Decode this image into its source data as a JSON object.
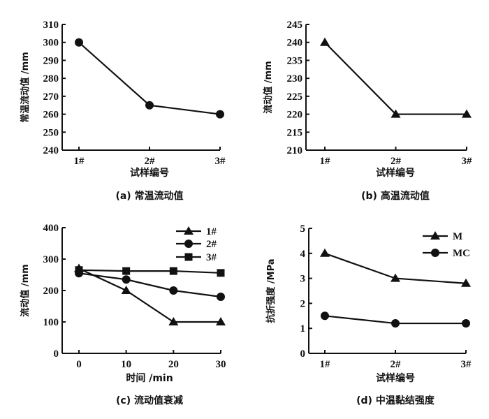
{
  "chart_data": [
    {
      "type": "line",
      "caption": "(a) 常温流动值",
      "xlabel": "试样编号",
      "ylabel": "常温流动值 /mm",
      "categories": [
        "1#",
        "2#",
        "3#"
      ],
      "ylim": [
        240,
        310
      ],
      "yticks": [
        240,
        250,
        260,
        270,
        280,
        290,
        300,
        310
      ],
      "grid": false,
      "series": [
        {
          "marker": "circle",
          "values": [
            300,
            265,
            260
          ]
        }
      ]
    },
    {
      "type": "line",
      "caption": "(b) 高温流动值",
      "xlabel": "试样编号",
      "ylabel": "流动值 /mm",
      "categories": [
        "1#",
        "2#",
        "3#"
      ],
      "ylim": [
        210,
        245
      ],
      "yticks": [
        210,
        215,
        220,
        225,
        230,
        235,
        240,
        245
      ],
      "grid": false,
      "series": [
        {
          "marker": "triangle",
          "values": [
            240,
            220,
            220
          ]
        }
      ]
    },
    {
      "type": "line",
      "caption": "(c) 流动值衰减",
      "xlabel": "时间 /min",
      "ylabel": "流动值 /mm",
      "categories": [
        "0",
        "10",
        "20",
        "30"
      ],
      "ylim": [
        0,
        400
      ],
      "yticks": [
        0,
        100,
        200,
        300,
        400
      ],
      "grid": false,
      "legend": "top-right",
      "series": [
        {
          "name": "1#",
          "marker": "triangle",
          "values": [
            270,
            200,
            100,
            100
          ]
        },
        {
          "name": "2#",
          "marker": "circle",
          "values": [
            255,
            235,
            200,
            180
          ]
        },
        {
          "name": "3#",
          "marker": "square",
          "values": [
            265,
            262,
            262,
            256
          ]
        }
      ]
    },
    {
      "type": "line",
      "caption": "(d) 中温黏结强度",
      "xlabel": "试样编号",
      "ylabel": "抗折强度 /MPa",
      "categories": [
        "1#",
        "2#",
        "3#"
      ],
      "ylim": [
        0,
        5
      ],
      "yticks": [
        0,
        1,
        2,
        3,
        4,
        5
      ],
      "grid": false,
      "legend": "top-right",
      "series": [
        {
          "name": "M",
          "marker": "triangle",
          "values": [
            4.0,
            3.0,
            2.8
          ]
        },
        {
          "name": "MC",
          "marker": "circle",
          "values": [
            1.5,
            1.2,
            1.2
          ]
        }
      ]
    }
  ]
}
